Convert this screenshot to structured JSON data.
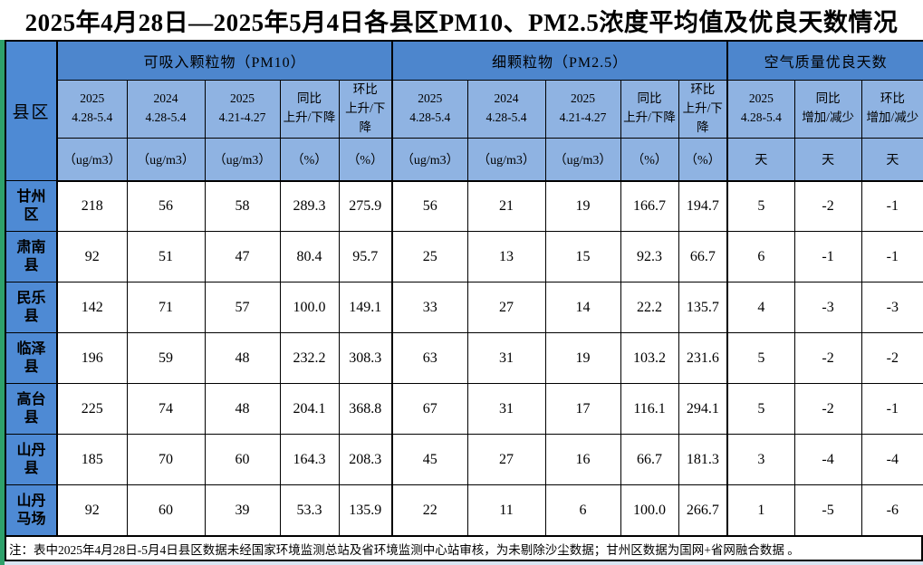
{
  "title": "2025年4月28日—2025年5月4日各县区PM10、PM2.5浓度平均值及优良天数情况",
  "table": {
    "county_col_header": "县区",
    "groups": [
      {
        "label": "可吸入颗粒物（PM10）"
      },
      {
        "label": "细颗粒物（PM2.5）"
      },
      {
        "label": "空气质量优良天数"
      }
    ],
    "pm_cols": [
      {
        "line1": "2025",
        "line2": "4.28-5.4",
        "unit": "（ug/m3）"
      },
      {
        "line1": "2024",
        "line2": "4.28-5.4",
        "unit": "（ug/m3）"
      },
      {
        "line1": "2025",
        "line2": "4.21-4.27",
        "unit": "（ug/m3）"
      },
      {
        "line1": "同比",
        "line2": "上升/下降",
        "unit": "（%）"
      },
      {
        "line1": "环比",
        "line2": "上升/下降",
        "unit": "（%）"
      }
    ],
    "day_cols": [
      {
        "line1": "2025",
        "line2": "4.28-5.4",
        "unit": "天"
      },
      {
        "line1": "同比",
        "line2": "增加/减少",
        "unit": "天"
      },
      {
        "line1": "环比",
        "line2": "增加/减少",
        "unit": "天"
      }
    ],
    "rows": [
      {
        "name": "甘州区",
        "pm10": [
          "218",
          "56",
          "58",
          "289.3",
          "275.9"
        ],
        "pm25": [
          "56",
          "21",
          "19",
          "166.7",
          "194.7"
        ],
        "days": [
          "5",
          "-2",
          "-1"
        ]
      },
      {
        "name": "肃南县",
        "pm10": [
          "92",
          "51",
          "47",
          "80.4",
          "95.7"
        ],
        "pm25": [
          "25",
          "13",
          "15",
          "92.3",
          "66.7"
        ],
        "days": [
          "6",
          "-1",
          "-1"
        ]
      },
      {
        "name": "民乐县",
        "pm10": [
          "142",
          "71",
          "57",
          "100.0",
          "149.1"
        ],
        "pm25": [
          "33",
          "27",
          "14",
          "22.2",
          "135.7"
        ],
        "days": [
          "4",
          "-3",
          "-3"
        ]
      },
      {
        "name": "临泽县",
        "pm10": [
          "196",
          "59",
          "48",
          "232.2",
          "308.3"
        ],
        "pm25": [
          "63",
          "31",
          "19",
          "103.2",
          "231.6"
        ],
        "days": [
          "5",
          "-2",
          "-2"
        ]
      },
      {
        "name": "高台县",
        "pm10": [
          "225",
          "74",
          "48",
          "204.1",
          "368.8"
        ],
        "pm25": [
          "67",
          "31",
          "17",
          "116.1",
          "294.1"
        ],
        "days": [
          "5",
          "-2",
          "-1"
        ]
      },
      {
        "name": "山丹县",
        "pm10": [
          "185",
          "70",
          "60",
          "164.3",
          "208.3"
        ],
        "pm25": [
          "45",
          "27",
          "16",
          "66.7",
          "181.3"
        ],
        "days": [
          "3",
          "-4",
          "-4"
        ]
      },
      {
        "name": "山丹马场",
        "pm10": [
          "92",
          "60",
          "39",
          "53.3",
          "135.9"
        ],
        "pm25": [
          "22",
          "11",
          "6",
          "100.0",
          "266.7"
        ],
        "days": [
          "1",
          "-5",
          "-6"
        ]
      }
    ]
  },
  "footnote": "注：表中2025年4月28日-5月4日县区数据未经国家环境监测总站及省环境监测中心站审核，为未剔除沙尘数据；甘州区数据为国网+省网融合数据 。",
  "colors": {
    "group_header_blue": "#4d86cd",
    "subheader_blue": "#8fb3e2",
    "county_blue": "#4e8ad4",
    "edge_green": "#2ea16b",
    "bottom_strip_blue": "#d9e5f2",
    "border_black": "#000000",
    "cell_white": "#ffffff"
  }
}
